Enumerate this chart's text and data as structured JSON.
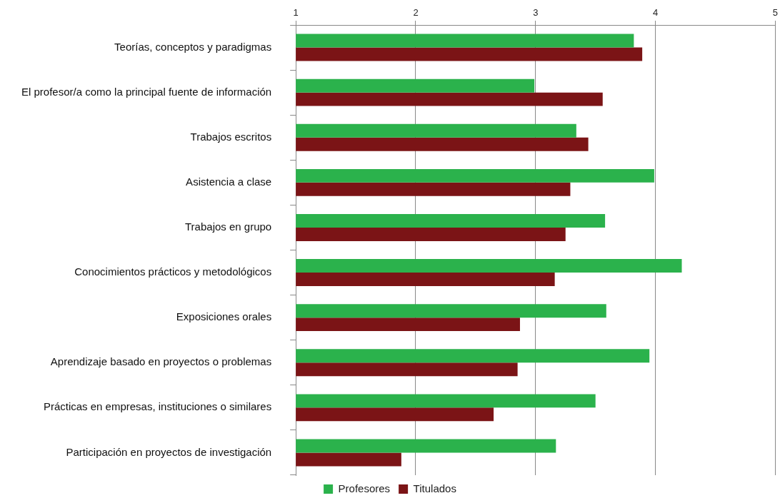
{
  "chart_data": {
    "type": "bar",
    "orientation": "horizontal",
    "categories": [
      "Teorías, conceptos y paradigmas",
      "El profesor/a como la principal fuente de información",
      "Trabajos escritos",
      "Asistencia a clase",
      "Trabajos en grupo",
      "Conocimientos prácticos y metodológicos",
      "Exposiciones orales",
      "Aprendizaje basado en proyectos o problemas",
      "Prácticas en empresas, instituciones o similares",
      "Participación en proyectos de investigación"
    ],
    "series": [
      {
        "name": "Profesores",
        "color": "#2bb24c",
        "values": [
          3.82,
          2.99,
          3.34,
          3.99,
          3.58,
          4.22,
          3.59,
          3.95,
          3.5,
          3.17
        ]
      },
      {
        "name": "Titulados",
        "color": "#7b1416",
        "values": [
          3.89,
          3.56,
          3.44,
          3.29,
          3.25,
          3.16,
          2.87,
          2.85,
          2.65,
          1.88
        ]
      }
    ],
    "xlim": [
      1,
      5
    ],
    "xticks": [
      1,
      2,
      3,
      4,
      5
    ],
    "grid": "x",
    "legend": "bottom"
  }
}
